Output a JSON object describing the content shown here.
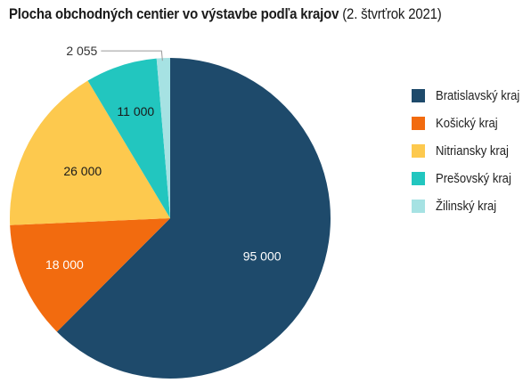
{
  "chart_data": {
    "type": "pie",
    "title": "Plocha obchodných centier vo výstavbe podľa krajov",
    "subtitle": "(2. štvrťrok 2021)",
    "series": [
      {
        "name": "Bratislavský kraj",
        "value": 95000,
        "label": "95 000",
        "color": "#1e4a6b"
      },
      {
        "name": "Košický kraj",
        "value": 18000,
        "label": "18 000",
        "color": "#f26b0f"
      },
      {
        "name": "Nitriansky kraj",
        "value": 26000,
        "label": "26 000",
        "color": "#fdc94e"
      },
      {
        "name": "Prešovský kraj",
        "value": 11000,
        "label": "11 000",
        "color": "#22c6bf"
      },
      {
        "name": "Žilinský kraj",
        "value": 2055,
        "label": "2 055",
        "color": "#a6e2e3"
      }
    ],
    "legend_position": "right"
  }
}
